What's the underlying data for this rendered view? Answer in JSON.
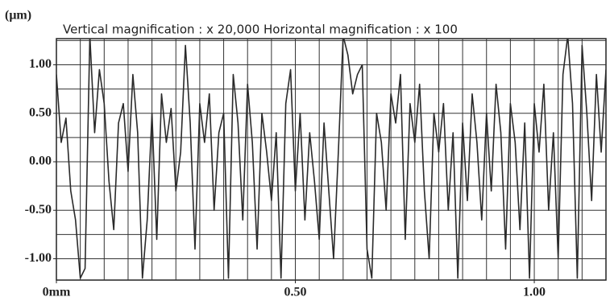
{
  "chart_data": {
    "type": "line",
    "title": "Vertical magnification  : x  20,000  Horizontal magnification  : x   100",
    "ylabel": "(μm)",
    "color": "#2a2a2a",
    "grid": true,
    "xlim": [
      0,
      1.15
    ],
    "ylim": [
      -1.22,
      1.27
    ],
    "xticks": [
      {
        "value": 0,
        "label": "0mm"
      },
      {
        "value": 0.5,
        "label": "0.50"
      },
      {
        "value": 1.0,
        "label": "1.00"
      }
    ],
    "yticks": [
      {
        "value": 1.0,
        "label": "1.00"
      },
      {
        "value": 0.5,
        "label": "0.50"
      },
      {
        "value": 0.0,
        "label": "0.00"
      },
      {
        "value": -0.5,
        "label": "-0.50"
      },
      {
        "value": -1.0,
        "label": "-1.00"
      }
    ],
    "xgrid": [
      0.05,
      0.1,
      0.15,
      0.2,
      0.25,
      0.3,
      0.35,
      0.4,
      0.45,
      0.5,
      0.55,
      0.6,
      0.65,
      0.7,
      0.75,
      0.8,
      0.85,
      0.9,
      0.95,
      1.0,
      1.05,
      1.1
    ],
    "ygrid": [
      1.25,
      1.0,
      0.75,
      0.5,
      0.25,
      0.0,
      -0.25,
      -0.5,
      -0.75,
      -1.0
    ],
    "x": [
      0,
      0.01,
      0.02,
      0.03,
      0.04,
      0.05,
      0.06,
      0.07,
      0.08,
      0.09,
      0.1,
      0.11,
      0.12,
      0.13,
      0.14,
      0.15,
      0.16,
      0.17,
      0.18,
      0.19,
      0.2,
      0.21,
      0.22,
      0.23,
      0.24,
      0.25,
      0.26,
      0.27,
      0.28,
      0.29,
      0.3,
      0.31,
      0.32,
      0.33,
      0.34,
      0.35,
      0.36,
      0.37,
      0.38,
      0.39,
      0.4,
      0.41,
      0.42,
      0.43,
      0.44,
      0.45,
      0.46,
      0.47,
      0.48,
      0.49,
      0.5,
      0.51,
      0.52,
      0.53,
      0.54,
      0.55,
      0.56,
      0.57,
      0.58,
      0.59,
      0.6,
      0.61,
      0.62,
      0.63,
      0.64,
      0.65,
      0.66,
      0.67,
      0.68,
      0.69,
      0.7,
      0.71,
      0.72,
      0.73,
      0.74,
      0.75,
      0.76,
      0.77,
      0.78,
      0.79,
      0.8,
      0.81,
      0.82,
      0.83,
      0.84,
      0.85,
      0.86,
      0.87,
      0.88,
      0.89,
      0.9,
      0.91,
      0.92,
      0.93,
      0.94,
      0.95,
      0.96,
      0.97,
      0.98,
      0.99,
      1.0,
      1.01,
      1.02,
      1.03,
      1.04,
      1.05,
      1.06,
      1.07,
      1.08,
      1.09,
      1.1,
      1.11,
      1.12,
      1.13,
      1.14,
      1.15
    ],
    "values": [
      0.9,
      0.2,
      0.45,
      -0.3,
      -0.6,
      -1.2,
      -1.1,
      1.3,
      0.3,
      0.95,
      0.6,
      -0.2,
      -0.7,
      0.4,
      0.6,
      -0.1,
      0.9,
      0.3,
      -1.2,
      -0.6,
      0.5,
      -0.8,
      0.7,
      0.2,
      0.55,
      -0.3,
      0.1,
      1.2,
      0.4,
      -0.9,
      0.6,
      0.2,
      0.7,
      -0.5,
      0.3,
      0.5,
      -1.2,
      0.9,
      0.4,
      -0.6,
      0.8,
      0.2,
      -0.9,
      0.5,
      0.1,
      -0.4,
      0.3,
      -1.2,
      0.6,
      0.95,
      -0.3,
      0.5,
      -0.6,
      0.3,
      -0.2,
      -0.8,
      0.4,
      -0.3,
      -1.0,
      0.1,
      1.3,
      1.1,
      0.7,
      0.9,
      1.0,
      -0.9,
      -1.2,
      0.5,
      0.2,
      -0.5,
      0.7,
      0.4,
      0.9,
      -0.8,
      0.6,
      0.2,
      0.8,
      -0.3,
      -1.0,
      0.5,
      0.1,
      0.6,
      -0.5,
      0.3,
      -1.2,
      0.4,
      -0.4,
      0.7,
      0.2,
      -0.6,
      0.5,
      -0.3,
      0.8,
      0.3,
      -0.9,
      0.6,
      0.2,
      -0.7,
      0.4,
      -1.2,
      0.6,
      0.1,
      0.8,
      -0.5,
      0.3,
      -1.0,
      0.9,
      1.3,
      0.6,
      -1.2,
      1.2,
      0.5,
      -0.4,
      0.9,
      0.1,
      0.95
    ]
  }
}
